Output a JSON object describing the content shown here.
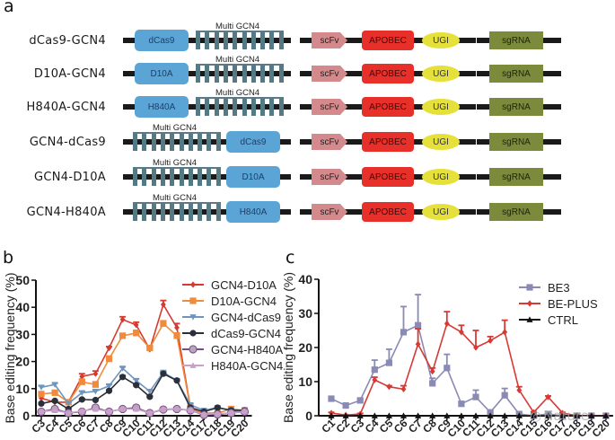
{
  "panel_a": {
    "letter": "a",
    "multi_label": "Multi GCN4",
    "constructs": [
      {
        "name": "dCas9-GCN4",
        "cas": "dCas9",
        "order": "cas-first"
      },
      {
        "name": "D10A-GCN4",
        "cas": "D10A",
        "order": "cas-first"
      },
      {
        "name": "H840A-GCN4",
        "cas": "H840A",
        "order": "cas-first"
      },
      {
        "name": "GCN4-dCas9",
        "cas": "dCas9",
        "order": "gcn-first"
      },
      {
        "name": "GCN4-D10A",
        "cas": "D10A",
        "order": "gcn-first"
      },
      {
        "name": "GCN4-H840A",
        "cas": "H840A",
        "order": "gcn-first"
      }
    ],
    "modules": {
      "scfv": "scFv",
      "apobec": "APOBEC",
      "ugi": "UGI",
      "sgrna": "sgRNA"
    },
    "colors": {
      "cas": "#5aa5d6",
      "gcn4": "#557a84",
      "scfv": "#d48a8c",
      "apobec": "#e8302b",
      "ugi": "#e6e03a",
      "sgrna": "#7b8a3b"
    }
  },
  "watermark": "Nature",
  "chart_data": [
    {
      "panel": "b",
      "type": "line",
      "title": "",
      "xlabel": "",
      "ylabel": "Base editing frequency (%)",
      "ylim": [
        0,
        50
      ],
      "yticks": [
        0,
        10,
        20,
        30,
        40,
        50
      ],
      "grid": false,
      "legend": "top-right",
      "categories": [
        "C3",
        "C4",
        "C5",
        "C6",
        "C7",
        "C8",
        "C9",
        "C10",
        "C11",
        "C12",
        "C13",
        "C14",
        "C17",
        "C18",
        "C19",
        "C20"
      ],
      "series": [
        {
          "name": "GCN4-D10A",
          "color": "#d63a2f",
          "marker": "diamond",
          "values": [
            6.5,
            5.0,
            5.0,
            14.5,
            15.5,
            25.0,
            35.5,
            33.5,
            24.5,
            41.0,
            32.5,
            3.0,
            0.5,
            0.5,
            1.0,
            2.0
          ],
          "errors": [
            1.0,
            0.5,
            0.5,
            1.0,
            1.0,
            0.5,
            1.0,
            1.0,
            1.0,
            1.5,
            1.5,
            0.5,
            0.3,
            0.3,
            0.3,
            0.3
          ]
        },
        {
          "name": "D10A-GCN4",
          "color": "#f08a3c",
          "marker": "square",
          "values": [
            8.0,
            8.5,
            5.0,
            12.5,
            11.5,
            21.0,
            29.5,
            30.5,
            25.0,
            34.0,
            29.5,
            3.0,
            1.0,
            1.0,
            2.5,
            2.0
          ],
          "errors": [
            0.5,
            0.5,
            0.5,
            1.0,
            1.0,
            1.0,
            0.5,
            1.0,
            0.5,
            1.0,
            1.0,
            0.5,
            0.3,
            0.3,
            0.5,
            0.3
          ]
        },
        {
          "name": "GCN4-dCas9",
          "color": "#6f95bd",
          "marker": "triangle-down",
          "values": [
            10.5,
            11.5,
            4.5,
            8.5,
            9.0,
            11.0,
            17.5,
            13.0,
            9.0,
            16.0,
            13.0,
            4.0,
            2.0,
            3.0,
            2.0,
            1.5
          ],
          "errors": [
            0.5,
            0.5,
            0.5,
            0.5,
            0.5,
            0.5,
            0.5,
            0.5,
            0.5,
            0.5,
            0.5,
            0.5,
            0.3,
            0.3,
            0.3,
            0.3
          ]
        },
        {
          "name": "dCas9-GCN4",
          "color": "#2a2f3a",
          "marker": "circle",
          "values": [
            4.5,
            5.5,
            2.5,
            6.0,
            5.8,
            9.2,
            14.3,
            11.3,
            7.0,
            15.5,
            13.0,
            3.0,
            1.5,
            3.0,
            2.0,
            2.0
          ],
          "errors": [
            0.3,
            0.3,
            0.3,
            0.3,
            0.3,
            0.3,
            0.5,
            0.3,
            0.3,
            0.5,
            0.3,
            0.3,
            0.2,
            0.2,
            0.2,
            0.2
          ]
        },
        {
          "name": "GCN4-H840A",
          "color": "#7a4a8a",
          "marker": "circle-open",
          "values": [
            1.5,
            2.5,
            1.0,
            1.5,
            3.0,
            1.5,
            2.5,
            3.0,
            1.0,
            2.3,
            2.5,
            2.0,
            0.3,
            0.5,
            1.0,
            1.5
          ],
          "errors": [
            0.2,
            0.2,
            0.2,
            0.2,
            0.2,
            0.2,
            0.2,
            0.2,
            0.2,
            0.2,
            0.2,
            0.2,
            0.1,
            0.1,
            0.1,
            0.1
          ]
        },
        {
          "name": "H840A-GCN4",
          "color": "#c8a0c8",
          "marker": "triangle-up",
          "values": [
            1.5,
            2.0,
            1.0,
            1.8,
            2.5,
            1.5,
            2.5,
            2.5,
            1.0,
            2.5,
            2.5,
            2.0,
            0.5,
            0.8,
            1.0,
            1.5
          ],
          "errors": [
            0.2,
            0.2,
            0.2,
            0.2,
            0.2,
            0.2,
            0.2,
            0.2,
            0.2,
            0.2,
            0.2,
            0.2,
            0.1,
            0.1,
            0.1,
            0.1
          ]
        }
      ]
    },
    {
      "panel": "c",
      "type": "line",
      "title": "",
      "xlabel": "",
      "ylabel": "Base editing frequency (%)",
      "ylim": [
        0,
        40
      ],
      "yticks": [
        0,
        10,
        20,
        30,
        40
      ],
      "grid": false,
      "legend": "top-right",
      "categories": [
        "C1",
        "C2",
        "C3",
        "C4",
        "C5",
        "C6",
        "C7",
        "C8",
        "C9",
        "C10",
        "C11",
        "C12",
        "C13",
        "C14",
        "C15",
        "C16",
        "C17",
        "C18",
        "C19",
        "C20"
      ],
      "series": [
        {
          "name": "BE3",
          "color": "#8a8ab4",
          "marker": "square",
          "values": [
            5.0,
            3.0,
            4.5,
            13.5,
            15.5,
            24.5,
            26.5,
            9.5,
            14.0,
            3.5,
            5.5,
            1.0,
            6.0,
            0.5,
            0.0,
            0.5,
            0.0,
            0.0,
            0.0,
            0.0
          ],
          "errors": [
            0.3,
            0.3,
            0.5,
            2.8,
            4.0,
            7.5,
            9.0,
            1.5,
            4.0,
            0.5,
            2.0,
            0.3,
            2.0,
            0.2,
            0.0,
            0.2,
            0.0,
            0.0,
            0.0,
            0.0
          ]
        },
        {
          "name": "BE-PLUS",
          "color": "#d63a35",
          "marker": "diamond",
          "values": [
            0.8,
            0.2,
            0.5,
            10.5,
            8.5,
            7.8,
            21.0,
            13.0,
            27.0,
            24.5,
            20.0,
            22.0,
            24.5,
            7.5,
            1.0,
            5.5,
            0.8,
            0.0,
            0.0,
            0.0
          ],
          "errors": [
            0.2,
            0.1,
            0.2,
            0.8,
            0.3,
            1.0,
            4.5,
            1.0,
            3.5,
            2.0,
            5.0,
            1.2,
            3.5,
            1.0,
            0.2,
            0.3,
            0.2,
            0.0,
            0.0,
            0.0
          ]
        },
        {
          "name": "CTRL",
          "color": "#111111",
          "marker": "triangle-up",
          "values": [
            0,
            0,
            0,
            0,
            0,
            0,
            0,
            0,
            0,
            0,
            0,
            0,
            0,
            0,
            0,
            0,
            0,
            0,
            0,
            0
          ],
          "errors": [
            0,
            0,
            0,
            0,
            0,
            0,
            0,
            0,
            0,
            0,
            0,
            0,
            0,
            0,
            0,
            0,
            0,
            0,
            0,
            0
          ]
        }
      ]
    }
  ]
}
